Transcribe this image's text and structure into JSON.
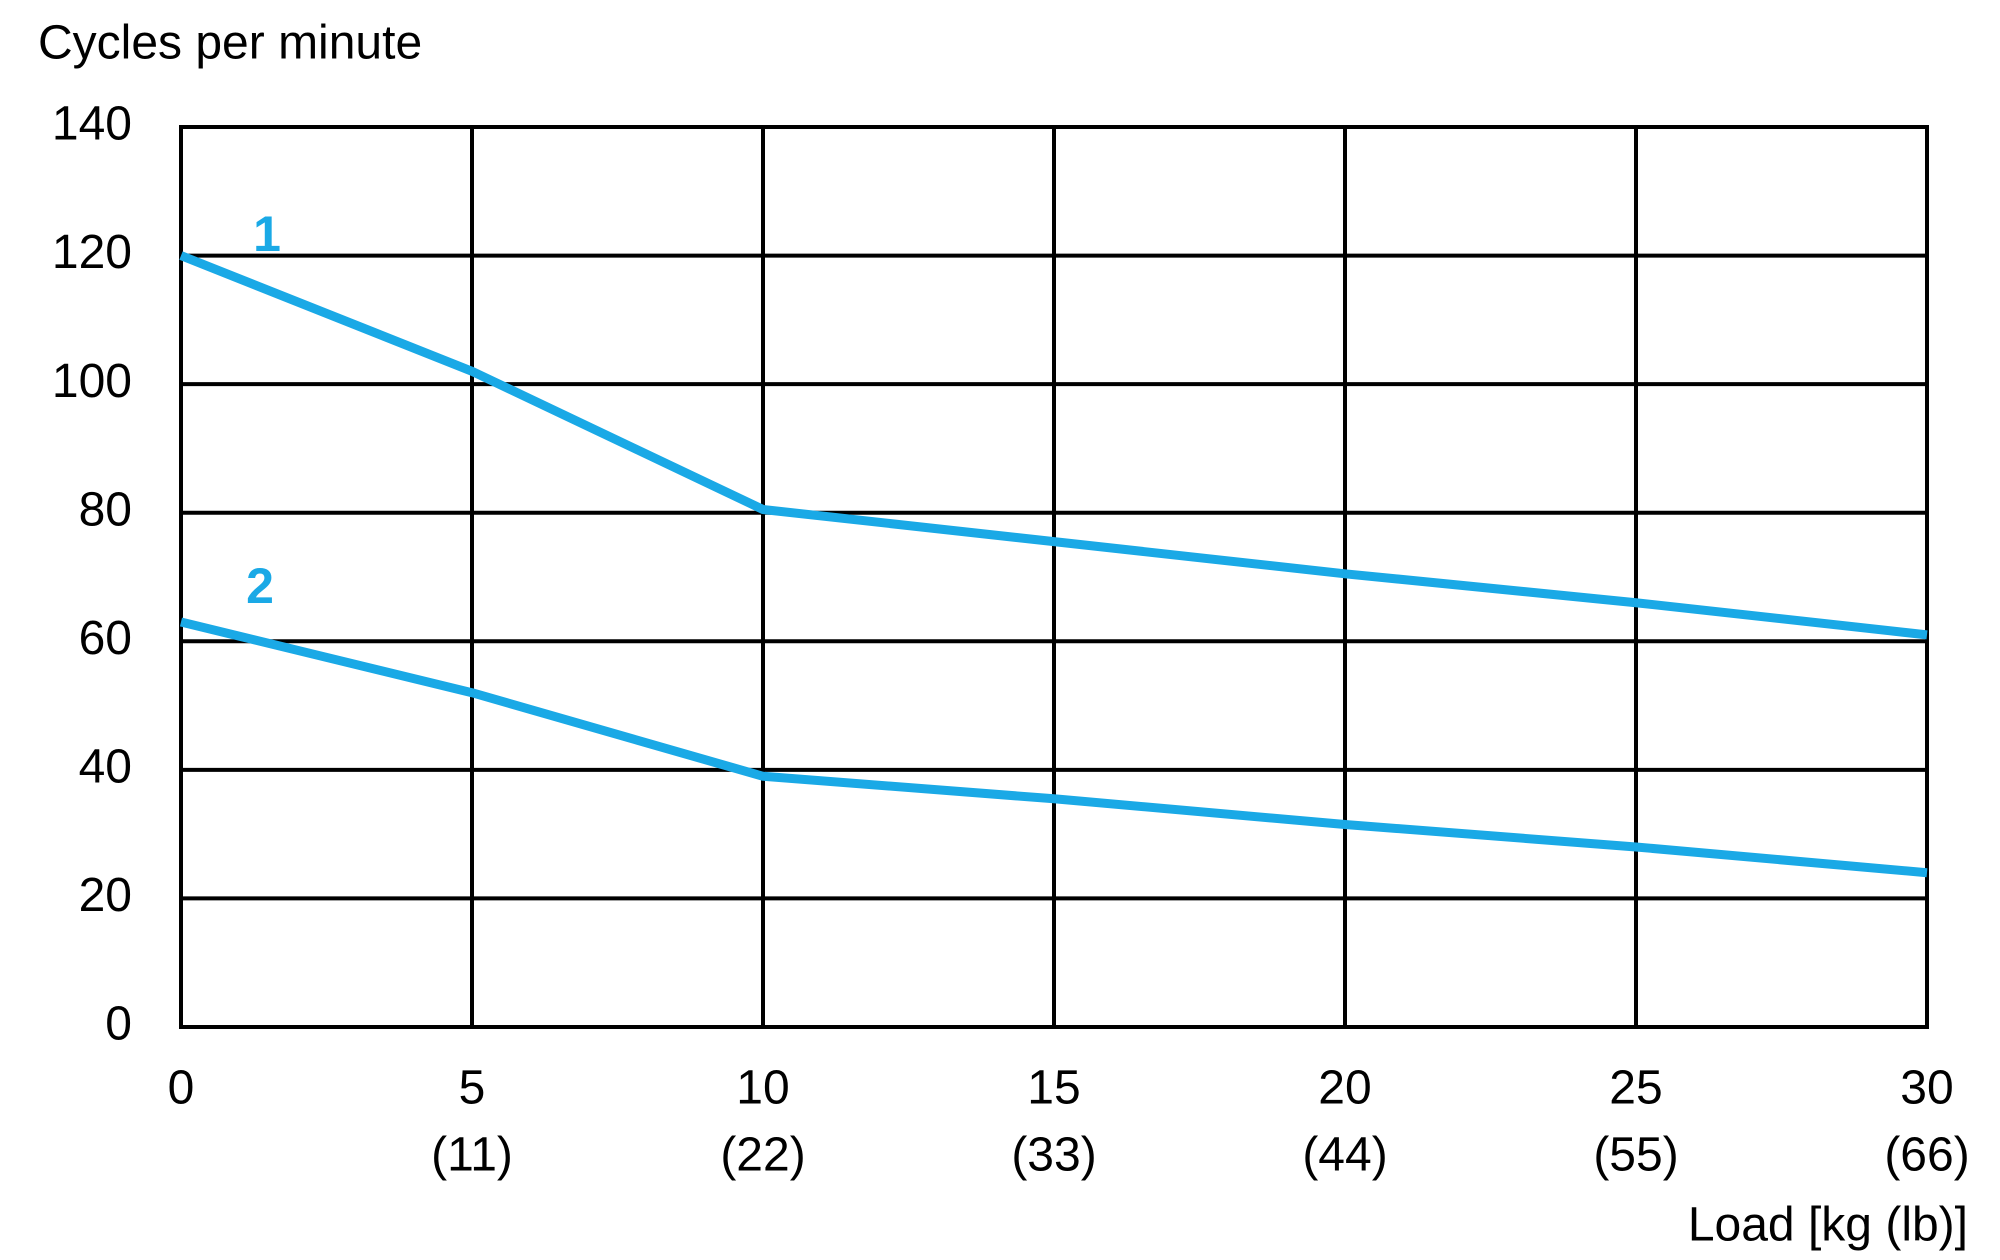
{
  "chart_data": {
    "type": "line",
    "y_axis_title": "Cycles per minute",
    "x_axis_title": "Load [kg (lb)]",
    "x": [
      0,
      5,
      10,
      15,
      20,
      25,
      30
    ],
    "series": [
      {
        "name": "1",
        "color": "#1aa9e6",
        "values": [
          120,
          102,
          80.5,
          75.5,
          70.5,
          66,
          61
        ]
      },
      {
        "name": "2",
        "color": "#1aa9e6",
        "values": [
          63,
          52,
          39,
          35.5,
          31.5,
          28,
          24
        ]
      }
    ],
    "xlim": [
      0,
      30
    ],
    "xticks": [
      0,
      5,
      10,
      15,
      20,
      25,
      30
    ],
    "xticks_lb": [
      {
        "value": 5,
        "label": "(11)"
      },
      {
        "value": 10,
        "label": "(22)"
      },
      {
        "value": 15,
        "label": "(33)"
      },
      {
        "value": 20,
        "label": "(44)"
      },
      {
        "value": 25,
        "label": "(55)"
      },
      {
        "value": 30,
        "label": "(66)"
      }
    ],
    "ylim": [
      0,
      140
    ],
    "yticks": [
      0,
      20,
      40,
      60,
      80,
      100,
      120,
      140
    ],
    "grid": true
  }
}
